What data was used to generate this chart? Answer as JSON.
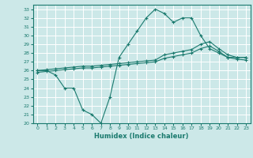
{
  "xlabel": "Humidex (Indice chaleur)",
  "background_color": "#cce8e8",
  "grid_color": "#ffffff",
  "line_color": "#1a7a6e",
  "xlim": [
    -0.5,
    23.5
  ],
  "ylim": [
    20,
    33.5
  ],
  "xticks": [
    0,
    1,
    2,
    3,
    4,
    5,
    6,
    7,
    8,
    9,
    10,
    11,
    12,
    13,
    14,
    15,
    16,
    17,
    18,
    19,
    20,
    21,
    22,
    23
  ],
  "yticks": [
    20,
    21,
    22,
    23,
    24,
    25,
    26,
    27,
    28,
    29,
    30,
    31,
    32,
    33
  ],
  "series1_x": [
    0,
    1,
    2,
    3,
    4,
    5,
    6,
    7,
    8,
    9,
    10,
    11,
    12,
    13,
    14,
    15,
    16,
    17,
    18,
    19,
    20,
    21,
    22,
    23
  ],
  "series1_y": [
    26.0,
    26.0,
    25.5,
    24.0,
    24.0,
    21.5,
    21.0,
    20.0,
    23.0,
    27.5,
    29.0,
    30.5,
    32.0,
    33.0,
    32.5,
    31.5,
    32.0,
    32.0,
    30.0,
    28.5,
    28.0,
    27.5,
    27.5,
    27.5
  ],
  "series2_x": [
    0,
    1,
    2,
    3,
    4,
    5,
    6,
    7,
    8,
    9,
    10,
    11,
    12,
    13,
    14,
    15,
    16,
    17,
    18,
    19,
    20,
    21,
    22,
    23
  ],
  "series2_y": [
    26.0,
    26.1,
    26.2,
    26.3,
    26.4,
    26.5,
    26.5,
    26.6,
    26.7,
    26.8,
    26.9,
    27.0,
    27.1,
    27.2,
    27.8,
    28.0,
    28.2,
    28.4,
    29.0,
    29.3,
    28.5,
    27.8,
    27.5,
    27.5
  ],
  "series3_x": [
    0,
    1,
    2,
    3,
    4,
    5,
    6,
    7,
    8,
    9,
    10,
    11,
    12,
    13,
    14,
    15,
    16,
    17,
    18,
    19,
    20,
    21,
    22,
    23
  ],
  "series3_y": [
    25.8,
    25.9,
    26.0,
    26.1,
    26.2,
    26.3,
    26.3,
    26.4,
    26.5,
    26.6,
    26.7,
    26.8,
    26.9,
    27.0,
    27.4,
    27.6,
    27.8,
    28.0,
    28.5,
    28.8,
    28.2,
    27.5,
    27.3,
    27.2
  ]
}
